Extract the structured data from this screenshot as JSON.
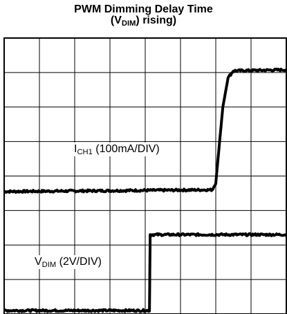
{
  "chart_data": {
    "type": "line",
    "title_line1": "PWM Dimming Delay Time",
    "title_line2": {
      "open": "(V",
      "sub": "DIM",
      "close": ") rising)"
    },
    "grid": true,
    "grid_divisions": {
      "x": 8,
      "y": 8
    },
    "xlim": [
      0,
      8
    ],
    "ylim": [
      0,
      8
    ],
    "series": [
      {
        "label": {
          "main": "I",
          "sub": "CH1",
          "rest": " (100mA/DIV)"
        },
        "x": [
          0,
          5.9,
          6.0,
          6.1,
          6.2,
          6.35,
          6.5,
          8
        ],
        "y": [
          3.55,
          3.6,
          3.8,
          4.9,
          6.0,
          6.85,
          7.05,
          7.08
        ],
        "noise": 0.03
      },
      {
        "label": {
          "main": "V",
          "sub": "DIM",
          "rest": " (2V/DIV)"
        },
        "x": [
          0,
          4.12,
          4.14,
          8
        ],
        "y": [
          0.1,
          0.1,
          2.3,
          2.3
        ],
        "noise": 0.03
      }
    ]
  }
}
